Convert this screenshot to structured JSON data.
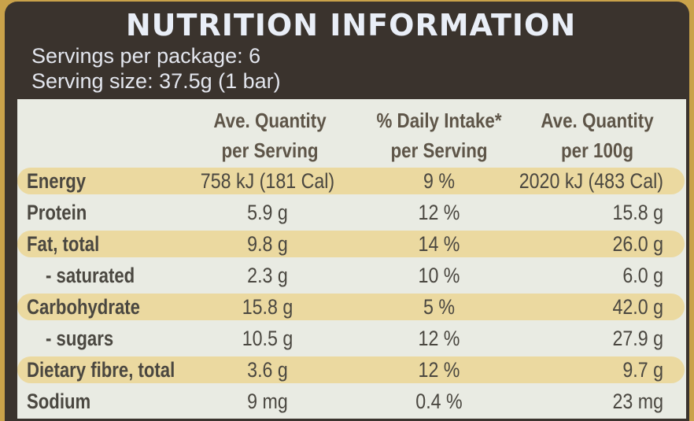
{
  "title": "NUTRITION INFORMATION",
  "servings_per_package": "Servings per package: 6",
  "serving_size": "Serving size: 37.5g (1 bar)",
  "headers": {
    "col1_line1": "Ave. Quantity",
    "col1_line2": "per Serving",
    "col2_line1": "% Daily Intake*",
    "col2_line2": "per Serving",
    "col3_line1": "Ave. Quantity",
    "col3_line2": "per 100g"
  },
  "rows": [
    {
      "label": "Energy",
      "per_serving": "758 kJ (181 Cal)",
      "daily_intake": "9 %",
      "per_100g": "2020 kJ (483 Cal)"
    },
    {
      "label": "Protein",
      "per_serving": "5.9 g",
      "daily_intake": "12 %",
      "per_100g": "15.8 g"
    },
    {
      "label": "Fat, total",
      "per_serving": "9.8 g",
      "daily_intake": "14 %",
      "per_100g": "26.0 g"
    },
    {
      "label": "- saturated",
      "per_serving": "2.3 g",
      "daily_intake": "10 %",
      "per_100g": "6.0 g"
    },
    {
      "label": "Carbohydrate",
      "per_serving": "15.8 g",
      "daily_intake": "5 %",
      "per_100g": "42.0 g"
    },
    {
      "label": "- sugars",
      "per_serving": "10.5 g",
      "daily_intake": "12 %",
      "per_100g": "27.9 g"
    },
    {
      "label": "Dietary fibre, total",
      "per_serving": "3.6 g",
      "daily_intake": "12 %",
      "per_100g": "9.7 g"
    },
    {
      "label": "Sodium",
      "per_serving": "9 mg",
      "daily_intake": "0.4 %",
      "per_100g": "23 mg"
    }
  ],
  "colors": {
    "header_background": "#3a332d",
    "table_background": "#e9ebe3",
    "highlight_band": "#ebd9a0",
    "title_text": "#e9eef7"
  }
}
